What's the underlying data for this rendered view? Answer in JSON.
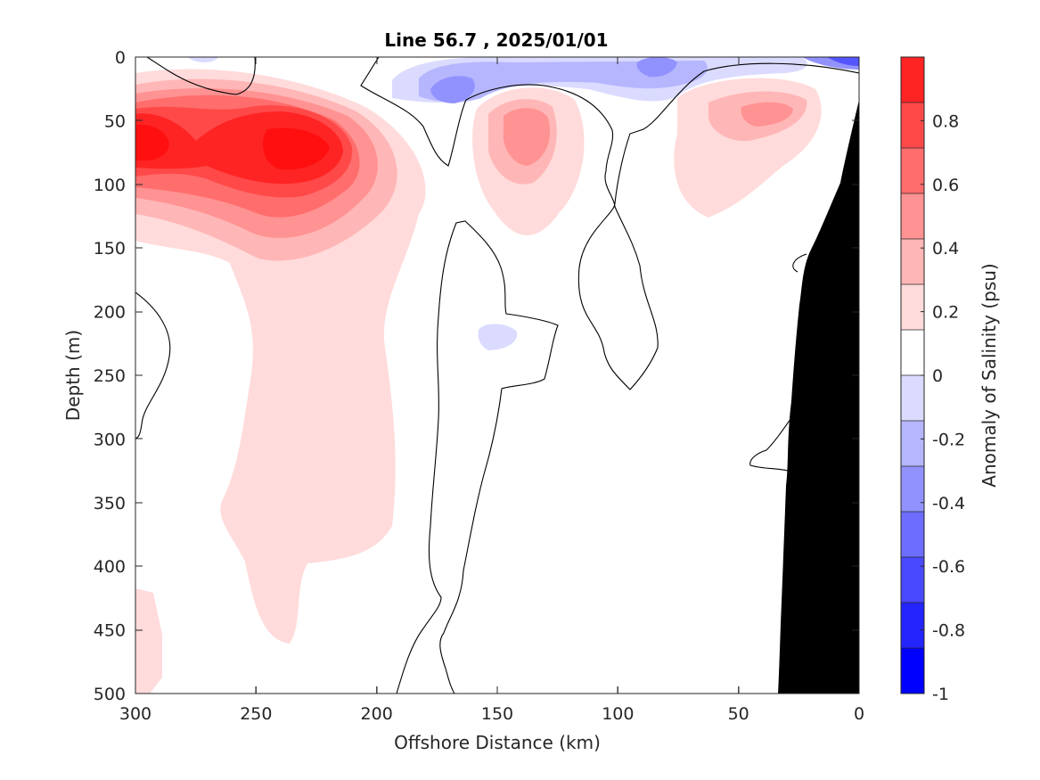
{
  "chart_data": {
    "type": "heatmap",
    "subtype": "filled-contour section",
    "title": "Line 56.7 , 2025/01/01",
    "xlabel": "Offshore Distance (km)",
    "ylabel": "Depth (m)",
    "xlim": [
      300,
      0
    ],
    "ylim": [
      500,
      0
    ],
    "x_reversed": true,
    "y_reversed": true,
    "x_ticks": [
      300,
      250,
      200,
      150,
      100,
      50,
      0
    ],
    "y_ticks": [
      0,
      50,
      100,
      150,
      200,
      250,
      300,
      350,
      400,
      450,
      500
    ],
    "colorbar": {
      "label": "Anomaly of Salinity (psu)",
      "range": [
        -1,
        1
      ],
      "levels": 14,
      "ticks": [
        -1,
        -0.8,
        -0.6,
        -0.4,
        -0.2,
        0,
        0.2,
        0.4,
        0.6,
        0.8
      ],
      "tick_labels": [
        "-1",
        "-0.8",
        "-0.6",
        "-0.4",
        "-0.2",
        "0",
        "0.2",
        "0.4",
        "0.6",
        "0.8"
      ],
      "colors": [
        "#0000ff",
        "#2424ff",
        "#4949ff",
        "#6d6dff",
        "#9292ff",
        "#b6b6ff",
        "#dbdbff",
        "#ffffff",
        "#ffdbdb",
        "#ffb6b6",
        "#ff9292",
        "#ff6d6d",
        "#ff4949",
        "#ff2424"
      ]
    },
    "features": [
      {
        "name": "positive anomaly core",
        "value": 0.85,
        "x_km": 292,
        "depth_m": 68
      },
      {
        "name": "positive anomaly core",
        "value": 0.85,
        "x_km": 226,
        "depth_m": 75
      },
      {
        "name": "positive anomaly",
        "value": 0.4,
        "x_km": 138,
        "depth_m": 63
      },
      {
        "name": "positive anomaly",
        "value": 0.3,
        "x_km": 35,
        "depth_m": 45
      },
      {
        "name": "negative anomaly",
        "value": -0.3,
        "x_km": 165,
        "depth_m": 25
      },
      {
        "name": "negative anomaly",
        "value": -0.3,
        "x_km": 85,
        "depth_m": 5
      },
      {
        "name": "negative anomaly",
        "value": -0.4,
        "x_km": 8,
        "depth_m": 2
      },
      {
        "name": "weak negative patch",
        "value": -0.1,
        "x_km": 150,
        "depth_m": 215
      }
    ],
    "bathymetry": {
      "color": "#000000"
    }
  }
}
